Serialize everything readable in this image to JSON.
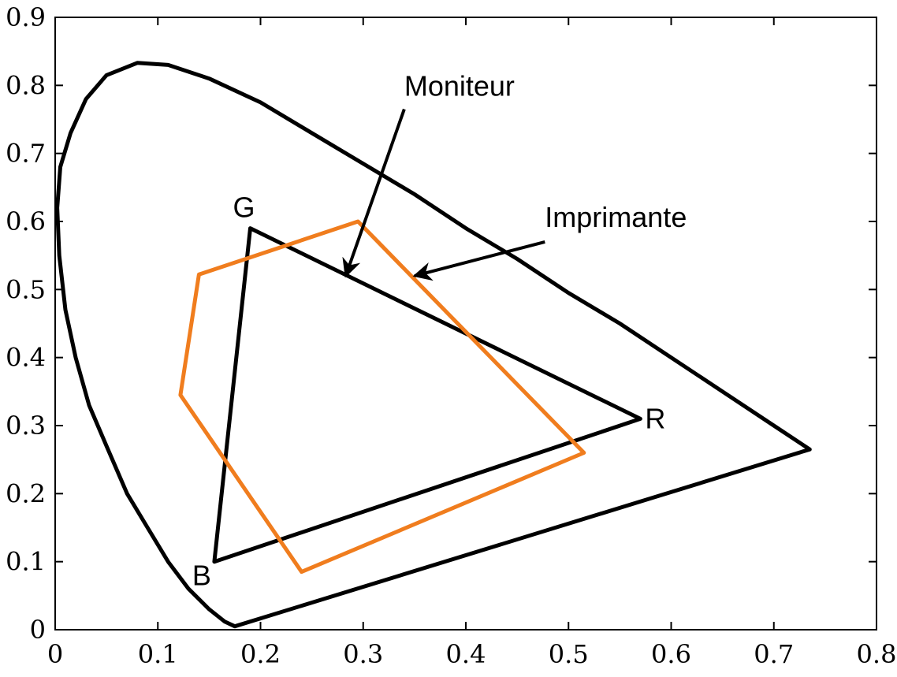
{
  "chart_data": {
    "type": "line",
    "title": "",
    "xlabel": "",
    "ylabel": "",
    "xlim": [
      0,
      0.8
    ],
    "ylim": [
      0,
      0.9
    ],
    "xticks": [
      0,
      0.1,
      0.2,
      0.3,
      0.4,
      0.5,
      0.6,
      0.7,
      0.8
    ],
    "xtick_labels": [
      "0",
      "0.1",
      "0.2",
      "0.3",
      "0.4",
      "0.5",
      "0.6",
      "0.7",
      "0.8"
    ],
    "yticks": [
      0,
      0.1,
      0.2,
      0.3,
      0.4,
      0.5,
      0.6,
      0.7,
      0.8,
      0.9
    ],
    "ytick_labels": [
      "0",
      "0.1",
      "0.2",
      "0.3",
      "0.4",
      "0.5",
      "0.6",
      "0.7",
      "0.8",
      "0.9"
    ],
    "grid": false,
    "series": [
      {
        "color": "#000000",
        "closed": true,
        "points": [
          [
            0.175,
            0.005
          ],
          [
            0.165,
            0.012
          ],
          [
            0.15,
            0.03
          ],
          [
            0.13,
            0.06
          ],
          [
            0.11,
            0.1
          ],
          [
            0.09,
            0.15
          ],
          [
            0.07,
            0.2
          ],
          [
            0.05,
            0.27
          ],
          [
            0.033,
            0.33
          ],
          [
            0.02,
            0.4
          ],
          [
            0.01,
            0.47
          ],
          [
            0.004,
            0.55
          ],
          [
            0.002,
            0.62
          ],
          [
            0.005,
            0.68
          ],
          [
            0.015,
            0.73
          ],
          [
            0.03,
            0.78
          ],
          [
            0.05,
            0.815
          ],
          [
            0.08,
            0.833
          ],
          [
            0.11,
            0.83
          ],
          [
            0.15,
            0.81
          ],
          [
            0.2,
            0.775
          ],
          [
            0.25,
            0.73
          ],
          [
            0.3,
            0.685
          ],
          [
            0.35,
            0.64
          ],
          [
            0.4,
            0.59
          ],
          [
            0.45,
            0.545
          ],
          [
            0.5,
            0.495
          ],
          [
            0.55,
            0.45
          ],
          [
            0.6,
            0.4
          ],
          [
            0.65,
            0.35
          ],
          [
            0.7,
            0.3
          ],
          [
            0.735,
            0.265
          ]
        ]
      },
      {
        "color": "#000000",
        "closed": true,
        "points": [
          [
            0.57,
            0.31
          ],
          [
            0.19,
            0.59
          ],
          [
            0.155,
            0.1
          ]
        ]
      },
      {
        "color": "#f07d1e",
        "closed": true,
        "points": [
          [
            0.295,
            0.6
          ],
          [
            0.515,
            0.26
          ],
          [
            0.24,
            0.085
          ],
          [
            0.122,
            0.345
          ],
          [
            0.14,
            0.522
          ]
        ]
      }
    ],
    "annotations": [
      {
        "text": "Moniteur",
        "x": 0.34,
        "y": 0.785,
        "arrow_from": [
          0.34,
          0.765
        ],
        "arrow_to": [
          0.283,
          0.52
        ]
      },
      {
        "text": "Imprimante",
        "x": 0.477,
        "y": 0.592,
        "arrow_from": [
          0.477,
          0.57
        ],
        "arrow_to": [
          0.35,
          0.52
        ]
      }
    ],
    "vertex_labels": [
      {
        "text": "G",
        "x": 0.19,
        "y": 0.59
      },
      {
        "text": "R",
        "x": 0.57,
        "y": 0.31
      },
      {
        "text": "B",
        "x": 0.155,
        "y": 0.1
      }
    ]
  }
}
